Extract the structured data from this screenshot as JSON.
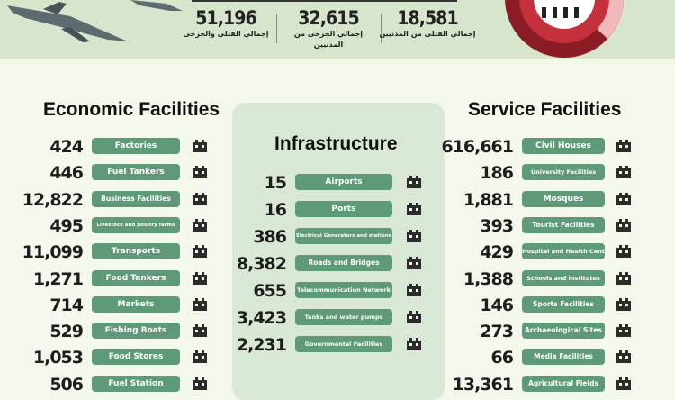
{
  "top_stats": [
    {
      "value": "51,196",
      "label": "إجمالي القتلى والجرحى"
    },
    {
      "value": "32,615",
      "label": "إجمالي الجرحى من المدنيين"
    },
    {
      "value": "18,581",
      "label": "إجمالي القتلى من المدنيين"
    }
  ],
  "economic": {
    "title": "Economic Facilities",
    "items": [
      {
        "value": "424",
        "label": "Factories",
        "icon": "factory-icon"
      },
      {
        "value": "446",
        "label": "Fuel Tankers",
        "icon": "fuel-truck-icon"
      },
      {
        "value": "12,822",
        "label": "Business Facilities",
        "icon": "office-building-icon"
      },
      {
        "value": "495",
        "label": "Livestock and poultry farms",
        "icon": "chicken-icon"
      },
      {
        "value": "11,099",
        "label": "Transports",
        "icon": "bus-icon"
      },
      {
        "value": "1,271",
        "label": "Food Tankers",
        "icon": "truck-icon"
      },
      {
        "value": "714",
        "label": "Markets",
        "icon": "market-icon"
      },
      {
        "value": "529",
        "label": "Fishing Boats",
        "icon": "boat-icon"
      },
      {
        "value": "1,053",
        "label": "Food Stores",
        "icon": "food-store-icon"
      },
      {
        "value": "506",
        "label": "Fuel Station",
        "icon": "fuel-pump-icon"
      }
    ]
  },
  "infrastructure": {
    "title": "Infrastructure",
    "items": [
      {
        "value": "15",
        "label": "Airports",
        "icon": "airport-icon"
      },
      {
        "value": "16",
        "label": "Ports",
        "icon": "port-icon"
      },
      {
        "value": "386",
        "label": "Electrical Generators and stations",
        "icon": "generator-icon"
      },
      {
        "value": "8,382",
        "label": "Roads and Bridges",
        "icon": "bridge-icon"
      },
      {
        "value": "655",
        "label": "Telecommunication Network",
        "icon": "antenna-icon"
      },
      {
        "value": "3,423",
        "label": "Tanks and water pumps",
        "icon": "water-tank-icon"
      },
      {
        "value": "2,231",
        "label": "Governmental Facilities",
        "icon": "government-building-icon"
      }
    ]
  },
  "service": {
    "title": "Service Facilities",
    "items": [
      {
        "value": "616,661",
        "label": "Civil Houses",
        "icon": "house-icon"
      },
      {
        "value": "186",
        "label": "University Facilities",
        "icon": "graduation-cap-icon"
      },
      {
        "value": "1,881",
        "label": "Mosques",
        "icon": "mosque-icon"
      },
      {
        "value": "393",
        "label": "Tourist Facilities",
        "icon": "landmark-icon"
      },
      {
        "value": "429",
        "label": "Hospital and Health Center",
        "icon": "hospital-icon"
      },
      {
        "value": "1,388",
        "label": "Schools and institutes",
        "icon": "school-icon"
      },
      {
        "value": "146",
        "label": "Sports Facilities",
        "icon": "football-icon"
      },
      {
        "value": "273",
        "label": "Archaeological Sites",
        "icon": "vase-icon"
      },
      {
        "value": "66",
        "label": "Media Facilities",
        "icon": "microphone-icon"
      },
      {
        "value": "13,361",
        "label": "Agricultural Fields",
        "icon": "plant-icon"
      }
    ]
  },
  "colors": {
    "pill": "#5e9a78",
    "donut_dark": "#8b1b24",
    "donut_green": "#4f8d5a",
    "donut_pink": "#f2b9bd",
    "donut_red": "#c4313c"
  }
}
